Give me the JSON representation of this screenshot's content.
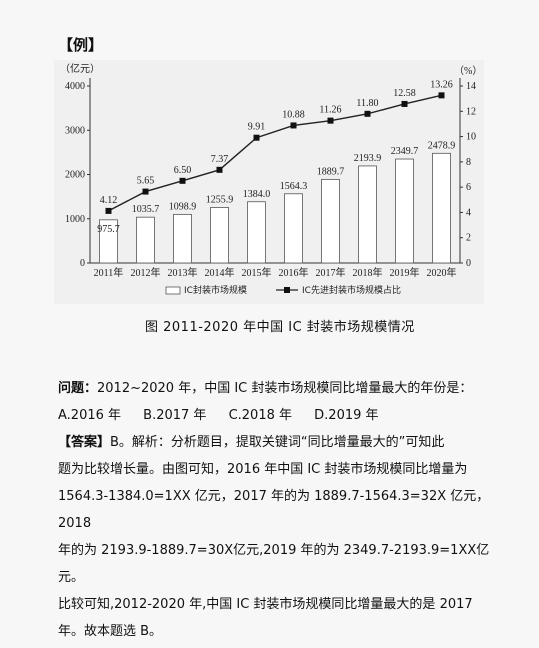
{
  "section_label": "【例】",
  "caption": "图 2011-2020 年中国 IC 封装市场规模情况",
  "question": {
    "label": "问题：",
    "text": "2012~2020 年，中国 IC 封装市场规模同比增量最大的年份是："
  },
  "options": [
    "A.2016 年",
    "B.2017 年",
    "C.2018 年",
    "D.2019 年"
  ],
  "answer": {
    "label": "【答案】",
    "lines": [
      "B。解析：分析题目，提取关键词“同比增量最大的”可知此",
      "题为比较增长量。由图可知，2016 年中国 IC 封装市场规模同比增量为",
      "1564.3-1384.0=1XX 亿元，2017 年的为 1889.7-1564.3=32X 亿元，2018",
      "年的为 2193.9-1889.7=30X亿元,2019 年的为 2349.7-2193.9=1XX亿元。",
      "比较可知,2012-2020 年,中国 IC 封装市场规模同比增量最大的是 2017",
      "年。故本题选 B。"
    ]
  },
  "chart_data": {
    "type": "bar+line",
    "categories": [
      "2011年",
      "2012年",
      "2013年",
      "2014年",
      "2015年",
      "2016年",
      "2017年",
      "2018年",
      "2019年",
      "2020年"
    ],
    "series": [
      {
        "name": "IC封装市场规模",
        "type": "bar",
        "axis": "left",
        "values": [
          975.7,
          1035.7,
          1098.9,
          1255.9,
          1384.0,
          1564.3,
          1889.7,
          2193.9,
          2349.7,
          2478.9
        ],
        "labels": [
          "975.7",
          "1035.7",
          "1098.9",
          "1255.9",
          "1384.0",
          "1564.3",
          "1889.7",
          "2193.9",
          "2349.7",
          "2478.9"
        ]
      },
      {
        "name": "IC先进封装市场规模占比",
        "type": "line",
        "axis": "right",
        "values": [
          4.12,
          5.65,
          6.5,
          7.37,
          9.91,
          10.88,
          11.26,
          11.8,
          12.58,
          13.26
        ],
        "labels": [
          "4.12",
          "5.65",
          "6.50",
          "7.37",
          "9.91",
          "10.88",
          "11.26",
          "11.80",
          "12.58",
          "13.26"
        ]
      }
    ],
    "ylabel_left": "（亿元）",
    "ylabel_right": "（%）",
    "ylim_left": [
      0,
      4000
    ],
    "yticks_left": [
      0,
      1000,
      2000,
      3000,
      4000
    ],
    "ylim_right": [
      0,
      14
    ],
    "yticks_right": [
      0,
      2,
      4,
      6,
      8,
      10,
      12,
      14
    ],
    "legend_position": "bottom",
    "grid": false,
    "colors": {
      "bar_fill": "#ffffff",
      "bar_stroke": "#555555",
      "line": "#222222",
      "marker": "#111111"
    }
  }
}
